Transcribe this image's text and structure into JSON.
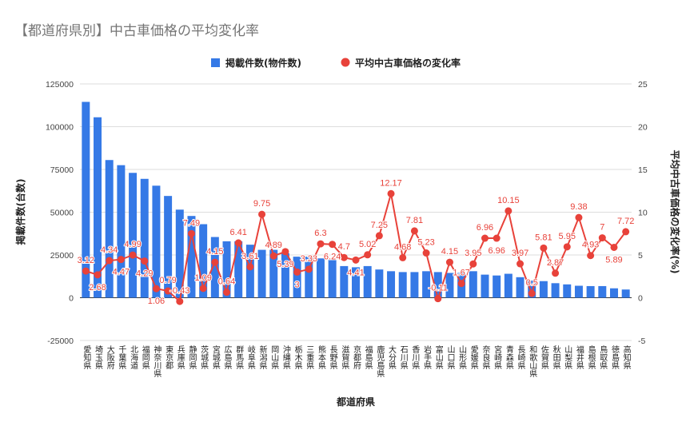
{
  "chart_data": {
    "type": "bar+line",
    "title": "【都道府県別】中古車価格の平均変化率",
    "xlabel": "都道府県",
    "ylabel": "掲載件数(台数)",
    "y2label": "平均中古車価格の変化率(%)",
    "ylim": [
      -25000,
      125000
    ],
    "y2lim": [
      -5,
      25
    ],
    "yticks": [
      "-25000",
      "0",
      "25000",
      "50000",
      "75000",
      "100000",
      "125000"
    ],
    "y2ticks": [
      "-5",
      "0",
      "5",
      "10",
      "15",
      "20",
      "25"
    ],
    "legend_position": "top",
    "grid": true,
    "categories": [
      "愛知県",
      "埼玉県",
      "大阪府",
      "千葉県",
      "北海道",
      "福岡県",
      "神奈川県",
      "東京都",
      "兵庫県",
      "静岡県",
      "茨城県",
      "宮城県",
      "広島県",
      "群馬県",
      "岐阜県",
      "新潟県",
      "岡山県",
      "沖縄県",
      "栃木県",
      "三重県",
      "熊本県",
      "長野県",
      "滋賀県",
      "京都府",
      "福島県",
      "鹿児島県",
      "大分県",
      "石川県",
      "香川県",
      "岩手県",
      "富山県",
      "山口県",
      "山形県",
      "愛媛県",
      "奈良県",
      "宮崎県",
      "青森県",
      "長崎県",
      "和歌山県",
      "佐賀県",
      "秋田県",
      "山梨県",
      "福井県",
      "島根県",
      "鳥取県",
      "徳島県",
      "高知県"
    ],
    "series": [
      {
        "name": "掲載件数(物件数)",
        "type": "bar",
        "axis": "left",
        "color": "#3579e6",
        "values": [
          114500,
          105500,
          80500,
          77500,
          73000,
          69500,
          65500,
          59500,
          51500,
          47800,
          43000,
          35500,
          33000,
          33000,
          31000,
          28000,
          28000,
          26000,
          24000,
          24000,
          23000,
          22500,
          18500,
          17800,
          18500,
          16500,
          15500,
          15000,
          15000,
          15500,
          15000,
          14500,
          14500,
          15500,
          13500,
          13000,
          14000,
          12000,
          10000,
          9700,
          8500,
          7800,
          7000,
          6800,
          6800,
          5500,
          4800
        ]
      },
      {
        "name": "平均中古車価格の変化率",
        "type": "line",
        "axis": "right",
        "color": "#e8423a",
        "values": [
          3.12,
          2.68,
          4.34,
          4.47,
          4.99,
          4.29,
          1.06,
          0.79,
          -0.43,
          7.49,
          1.09,
          4.15,
          0.64,
          6.41,
          3.61,
          9.75,
          4.89,
          5.39,
          3,
          3.33,
          6.3,
          6.24,
          4.7,
          4.41,
          5.02,
          7.25,
          12.17,
          4.68,
          7.81,
          5.23,
          -0.11,
          4.15,
          1.67,
          3.95,
          6.96,
          6.96,
          10.15,
          3.97,
          0.5,
          5.81,
          2.87,
          5.95,
          9.38,
          4.93,
          7,
          5.89,
          7.72
        ]
      }
    ]
  }
}
